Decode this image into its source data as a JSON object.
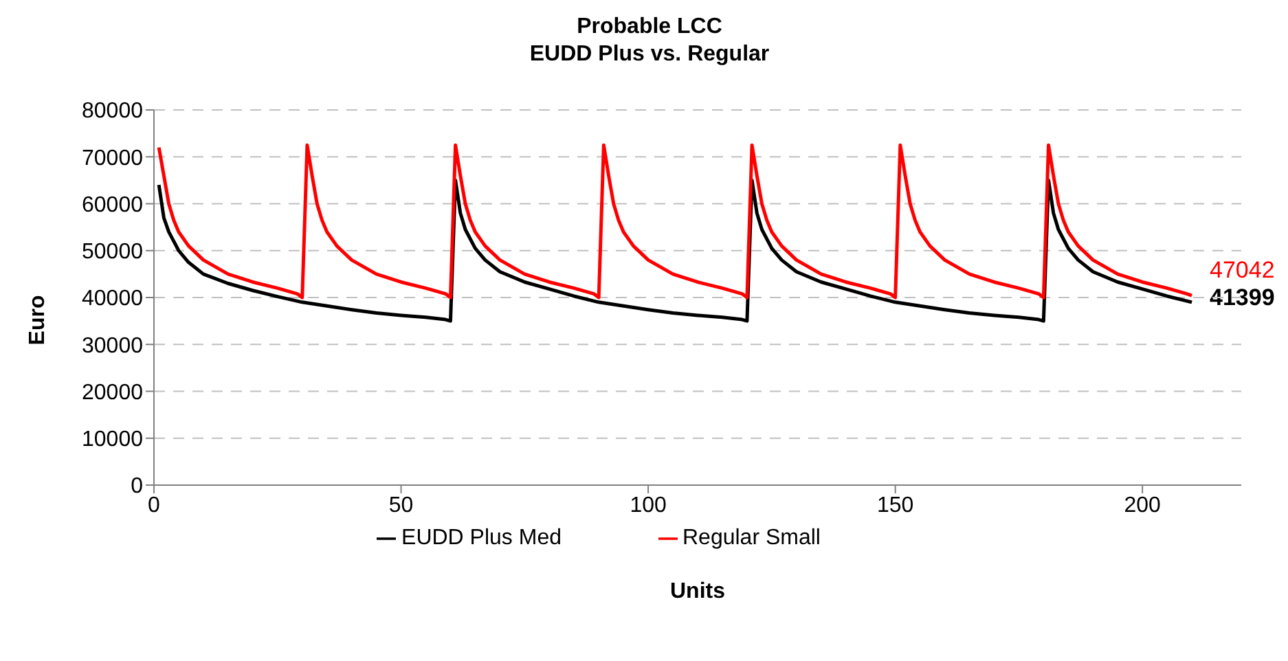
{
  "chart_data": {
    "type": "line",
    "title": "Probable LCC",
    "subtitle": "EUDD Plus vs. Regular",
    "xlabel": "Units",
    "ylabel": "Euro",
    "xlim": [
      0,
      220
    ],
    "xticks": [
      0,
      50,
      100,
      150,
      200
    ],
    "ylim": [
      0,
      80000
    ],
    "yticks": [
      0,
      10000,
      20000,
      30000,
      40000,
      50000,
      60000,
      70000,
      80000
    ],
    "grid": "y",
    "legend": "bottom",
    "marker": "none",
    "line_style": "solid",
    "annotations": [
      "47042",
      "41399"
    ],
    "series": [
      {
        "name": "EUDD Plus Med",
        "color": "#000000",
        "x": [
          1,
          2,
          3,
          5,
          7,
          10,
          15,
          20,
          25,
          30,
          35,
          40,
          45,
          50,
          55,
          59,
          60,
          61,
          62,
          63,
          65,
          67,
          70,
          75,
          80,
          85,
          90,
          95,
          100,
          105,
          110,
          115,
          119,
          120,
          121,
          122,
          123,
          125,
          127,
          130,
          135,
          140,
          145,
          150,
          155,
          160,
          165,
          170,
          175,
          179,
          180,
          181,
          182,
          183,
          185,
          187,
          190,
          195,
          200,
          205,
          210
        ],
        "values": [
          64000,
          57000,
          54000,
          50000,
          47500,
          45000,
          43000,
          41500,
          40200,
          39000,
          38200,
          37400,
          36700,
          36200,
          35800,
          35300,
          35000,
          65000,
          58000,
          54500,
          50500,
          48000,
          45500,
          43300,
          41800,
          40300,
          39000,
          38200,
          37400,
          36700,
          36200,
          35800,
          35300,
          35000,
          65000,
          58000,
          54500,
          50500,
          48000,
          45500,
          43300,
          41800,
          40300,
          39000,
          38200,
          37400,
          36700,
          36200,
          35800,
          35300,
          35000,
          65000,
          58000,
          54500,
          50500,
          48000,
          45500,
          43300,
          41800,
          40300,
          39000
        ]
      },
      {
        "name": "Regular Small",
        "color": "#ff0000",
        "x": [
          1,
          2,
          3,
          4,
          5,
          7,
          10,
          15,
          20,
          25,
          29,
          30,
          31,
          32,
          33,
          34,
          35,
          37,
          40,
          45,
          50,
          55,
          59,
          60,
          61,
          62,
          63,
          64,
          65,
          67,
          70,
          75,
          80,
          85,
          89,
          90,
          91,
          92,
          93,
          94,
          95,
          97,
          100,
          105,
          110,
          115,
          119,
          120,
          121,
          122,
          123,
          124,
          125,
          127,
          130,
          135,
          140,
          145,
          149,
          150,
          151,
          152,
          153,
          154,
          155,
          157,
          160,
          165,
          170,
          175,
          179,
          180,
          181,
          182,
          183,
          184,
          185,
          187,
          190,
          195,
          200,
          205,
          209,
          210
        ],
        "values": [
          72000,
          66000,
          60000,
          56500,
          54000,
          51000,
          48000,
          45000,
          43300,
          42000,
          40800,
          40000,
          72500,
          66000,
          60000,
          56500,
          54000,
          51000,
          48000,
          45000,
          43300,
          42000,
          40800,
          40000,
          72500,
          66000,
          60000,
          56500,
          54000,
          51000,
          48000,
          45000,
          43300,
          42000,
          40800,
          40000,
          72500,
          66000,
          60000,
          56500,
          54000,
          51000,
          48000,
          45000,
          43300,
          42000,
          40800,
          40000,
          72500,
          66000,
          60000,
          56500,
          54000,
          51000,
          48000,
          45000,
          43300,
          42000,
          40800,
          40000,
          72500,
          66000,
          60000,
          56500,
          54000,
          51000,
          48000,
          45000,
          43300,
          42000,
          40800,
          40000,
          72500,
          66000,
          60000,
          56500,
          54000,
          51000,
          48000,
          45000,
          43300,
          42000,
          40800,
          40400
        ]
      }
    ]
  }
}
